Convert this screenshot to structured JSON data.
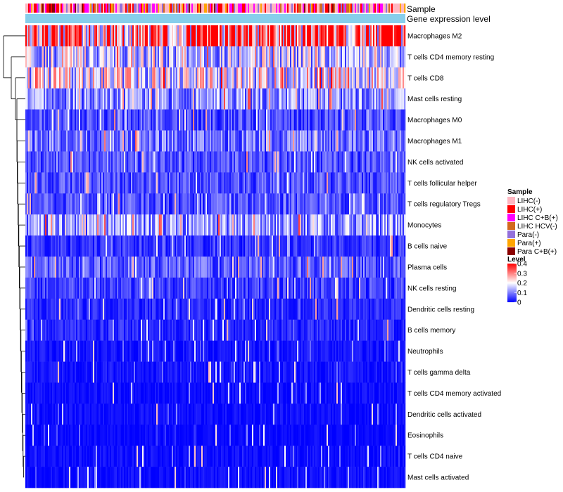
{
  "chart_data": {
    "type": "heatmap",
    "title": "",
    "annotation_tracks": [
      {
        "name": "Sample",
        "label": "Sample"
      },
      {
        "name": "Gene expression level",
        "label": "Gene expression level"
      }
    ],
    "rows": [
      {
        "label": "Macrophages M2",
        "mean": 0.3
      },
      {
        "label": "T cells CD4 memory resting",
        "mean": 0.16
      },
      {
        "label": "T cells CD8",
        "mean": 0.18
      },
      {
        "label": "Mast cells resting",
        "mean": 0.11
      },
      {
        "label": "Macrophages M0",
        "mean": 0.06
      },
      {
        "label": "Macrophages M1",
        "mean": 0.09
      },
      {
        "label": "NK cells activated",
        "mean": 0.06
      },
      {
        "label": "T cells follicular helper",
        "mean": 0.06
      },
      {
        "label": "T cells regulatory  Tregs",
        "mean": 0.06
      },
      {
        "label": "Monocytes",
        "mean": 0.12
      },
      {
        "label": "B cells naive",
        "mean": 0.04
      },
      {
        "label": "Plasma cells",
        "mean": 0.07
      },
      {
        "label": "NK cells resting",
        "mean": 0.05
      },
      {
        "label": "Dendritic cells resting",
        "mean": 0.03
      },
      {
        "label": "B cells memory",
        "mean": 0.03
      },
      {
        "label": "Neutrophils",
        "mean": 0.015
      },
      {
        "label": "T cells gamma delta",
        "mean": 0.015
      },
      {
        "label": "T cells CD4 memory activated",
        "mean": 0.01
      },
      {
        "label": "Dendritic cells activated",
        "mean": 0.01
      },
      {
        "label": "Eosinophils",
        "mean": 0.005
      },
      {
        "label": "T cells CD4 naive",
        "mean": 0.01
      },
      {
        "label": "Mast cells activated",
        "mean": 0.01
      }
    ],
    "sample_groups": [
      {
        "label": "LIHC(-)",
        "color": "#ffb6c1",
        "share": 0.38
      },
      {
        "label": "LIHC(+)",
        "color": "#ff0000",
        "share": 0.18
      },
      {
        "label": "LIHC C+B(+)",
        "color": "#ff00ff",
        "share": 0.14
      },
      {
        "label": "LIHC HCV(-)",
        "color": "#d2691e",
        "share": 0.05
      },
      {
        "label": "Para(-)",
        "color": "#9370db",
        "share": 0.13
      },
      {
        "label": "Para(+)",
        "color": "#ffa500",
        "share": 0.07
      },
      {
        "label": "Para C+B(+)",
        "color": "#8b0000",
        "share": 0.05
      }
    ],
    "gene_expression_color": "#87ceeb",
    "legend": {
      "sample_title": "Sample",
      "level_title": "Level",
      "level_ticks": [
        0.4,
        0.3,
        0.2,
        0.1,
        0
      ],
      "level_range": [
        0,
        0.4
      ],
      "level_colors": [
        "#0000ff",
        "#ffffff",
        "#ff0000"
      ],
      "placement": "right"
    }
  }
}
